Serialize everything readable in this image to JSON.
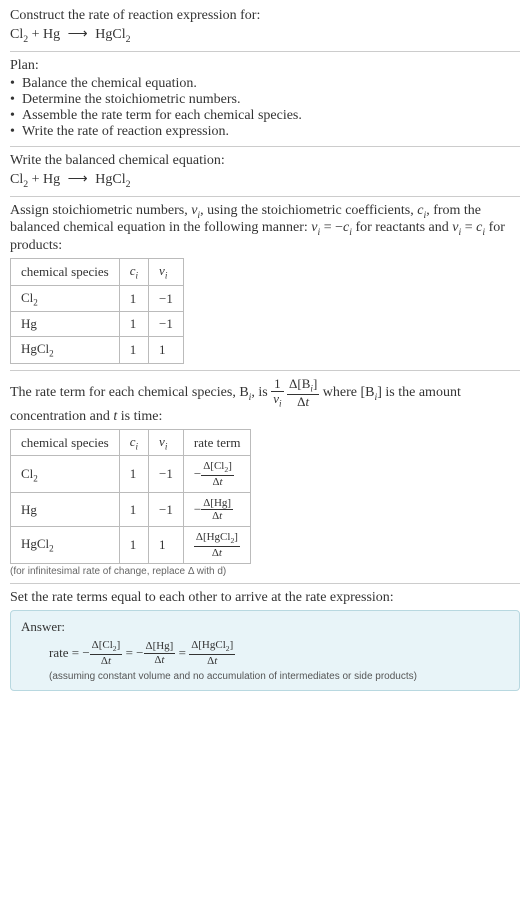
{
  "header": {
    "prompt": "Construct the rate of reaction expression for:"
  },
  "equation": {
    "r1": "Cl",
    "r1_sub": "2",
    "plus": " + ",
    "r2": "Hg",
    "arrow": "⟶",
    "p1": "HgCl",
    "p1_sub": "2"
  },
  "plan": {
    "title": "Plan:",
    "b_mark": "•",
    "b1": "Balance the chemical equation.",
    "b2": "Determine the stoichiometric numbers.",
    "b3": "Assemble the rate term for each chemical species.",
    "b4": "Write the rate of reaction expression."
  },
  "balanced": {
    "title": "Write the balanced chemical equation:"
  },
  "assign": {
    "text1": "Assign stoichiometric numbers, ",
    "nu_i": "ν",
    "sub_i": "i",
    "text2": ", using the stoichiometric coefficients, ",
    "c_i": "c",
    "text3": ", from the balanced chemical equation in the following manner: ",
    "rel1a": "ν",
    "rel1b": " = −",
    "rel1c": "c",
    "text4": " for reactants and ",
    "rel2a": "ν",
    "rel2b": " = ",
    "rel2c": "c",
    "text5": " for products:"
  },
  "table1": {
    "h_species": "chemical species",
    "h_c": "c",
    "h_c_sub": "i",
    "h_nu": "ν",
    "h_nu_sub": "i",
    "r1_sp": "Cl",
    "r1_sub": "2",
    "r1_c": "1",
    "r1_nu": "−1",
    "r2_sp": "Hg",
    "r2_c": "1",
    "r2_nu": "−1",
    "r3_sp": "HgCl",
    "r3_sub": "2",
    "r3_c": "1",
    "r3_nu": "1"
  },
  "rate_term": {
    "t1": "The rate term for each chemical species, B",
    "sub_i": "i",
    "t2": ", is ",
    "one": "1",
    "nu": "ν",
    "nu_sub": "i",
    "dB_top": "Δ[B",
    "dB_sub": "i",
    "dB_close": "]",
    "dt": "Δt",
    "t3": " where [B",
    "t4": "] is the amount concentration and ",
    "t_var": "t",
    "t5": " is time:"
  },
  "table2": {
    "h_species": "chemical species",
    "h_c": "c",
    "h_c_sub": "i",
    "h_nu": "ν",
    "h_nu_sub": "i",
    "h_rate": "rate term",
    "r1_sp": "Cl",
    "r1_sub": "2",
    "r1_c": "1",
    "r1_nu": "−1",
    "r1_neg": "−",
    "r1_top": "Δ[Cl",
    "r1_top_sub": "2",
    "r1_top_close": "]",
    "r1_bot": "Δt",
    "r2_sp": "Hg",
    "r2_c": "1",
    "r2_nu": "−1",
    "r2_neg": "−",
    "r2_top": "Δ[Hg]",
    "r2_bot": "Δt",
    "r3_sp": "HgCl",
    "r3_sub": "2",
    "r3_c": "1",
    "r3_nu": "1",
    "r3_top": "Δ[HgCl",
    "r3_top_sub": "2",
    "r3_top_close": "]",
    "r3_bot": "Δt",
    "note": "(for infinitesimal rate of change, replace Δ with d)"
  },
  "final": {
    "title": "Set the rate terms equal to each other to arrive at the rate expression:"
  },
  "answer": {
    "label": "Answer:",
    "rate": "rate = ",
    "neg": "−",
    "f1_top": "Δ[Cl",
    "f1_sub": "2",
    "f1_close": "]",
    "f1_bot": "Δt",
    "eq": " = ",
    "f2_top": "Δ[Hg]",
    "f2_bot": "Δt",
    "f3_top": "Δ[HgCl",
    "f3_sub": "2",
    "f3_close": "]",
    "f3_bot": "Δt",
    "note": "(assuming constant volume and no accumulation of intermediates or side products)"
  }
}
